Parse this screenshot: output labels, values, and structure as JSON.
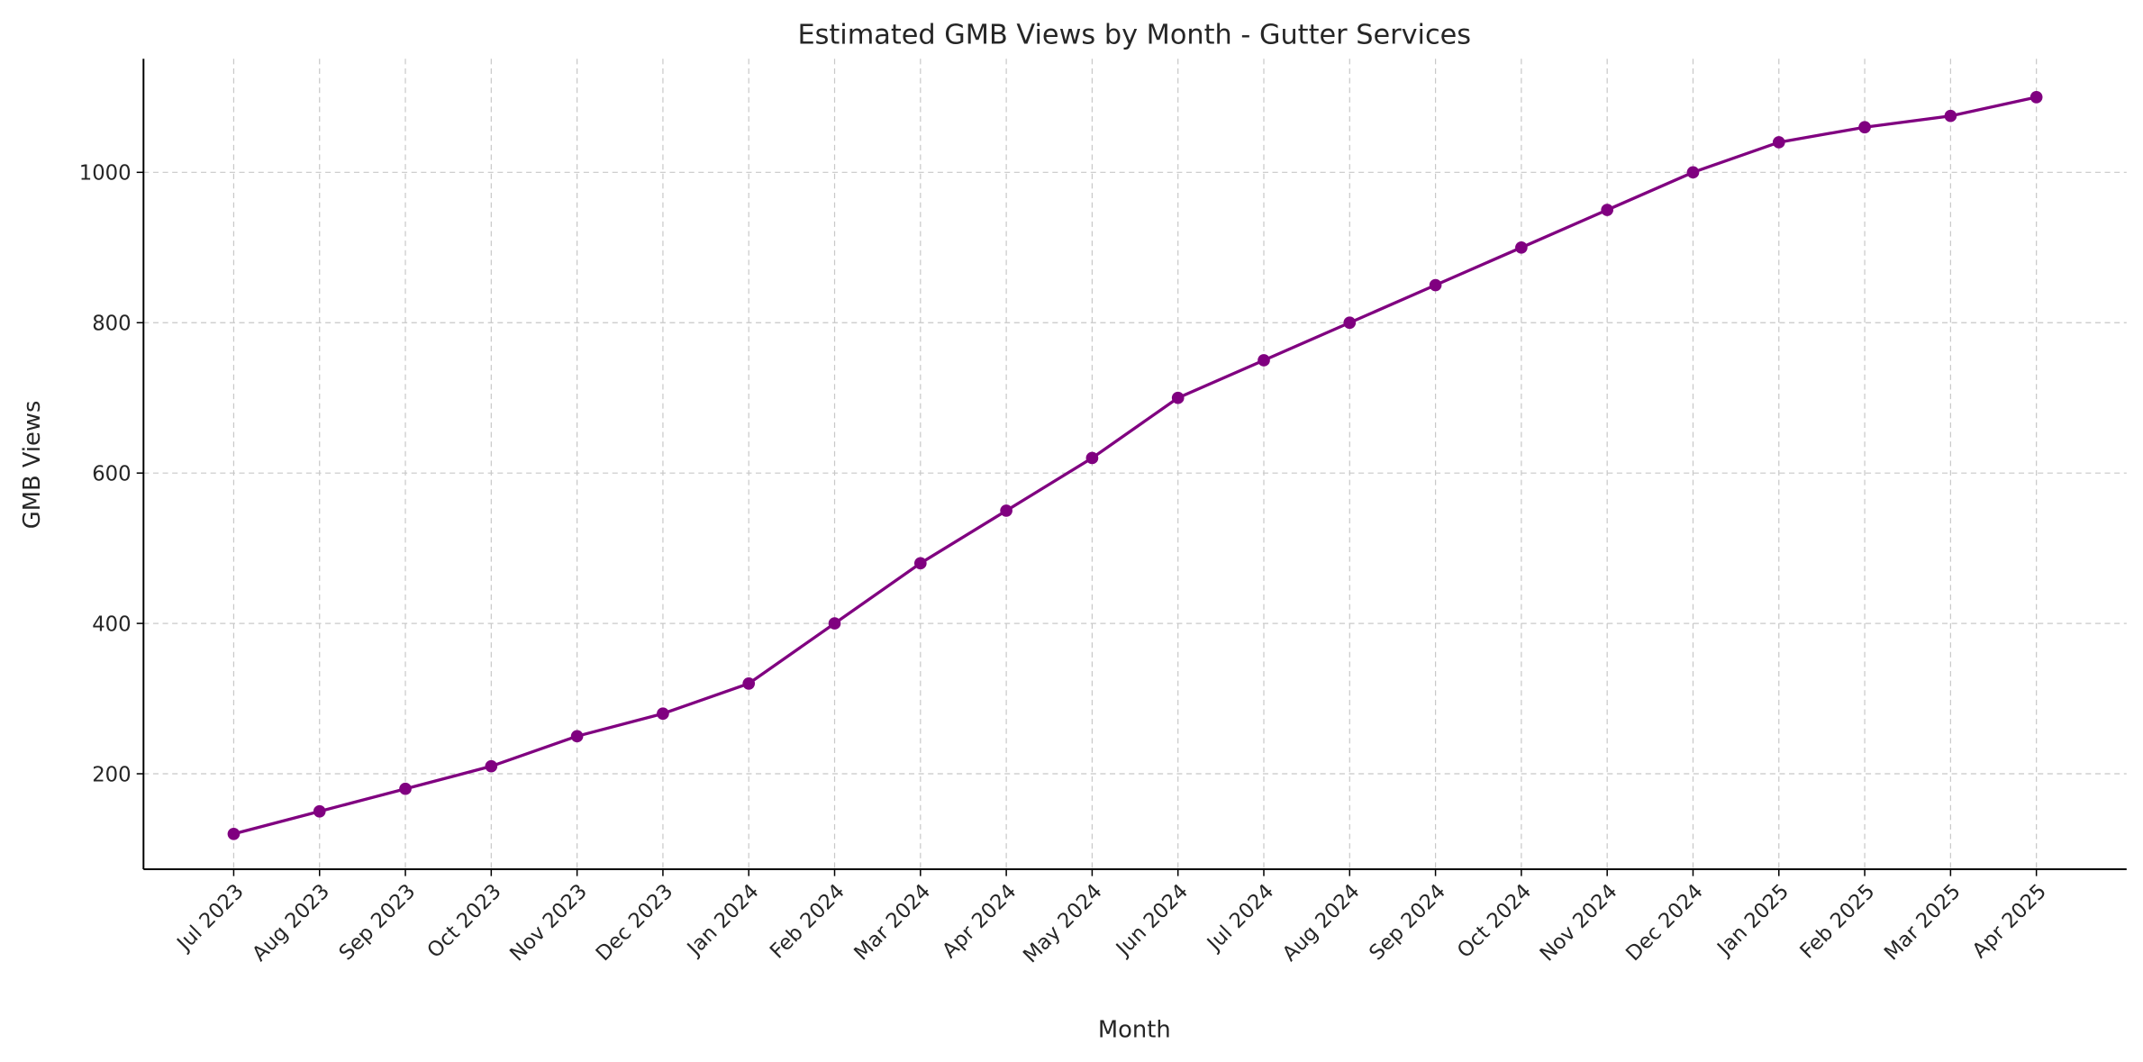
{
  "chart_data": {
    "type": "line",
    "title": "Estimated GMB Views by Month - Gutter Services",
    "xlabel": "Month",
    "ylabel": "GMB Views",
    "categories": [
      "Jul 2023",
      "Aug 2023",
      "Sep 2023",
      "Oct 2023",
      "Nov 2023",
      "Dec 2023",
      "Jan 2024",
      "Feb 2024",
      "Mar 2024",
      "Apr 2024",
      "May 2024",
      "Jun 2024",
      "Jul 2024",
      "Aug 2024",
      "Sep 2024",
      "Oct 2024",
      "Nov 2024",
      "Dec 2024",
      "Jan 2025",
      "Feb 2025",
      "Mar 2025",
      "Apr 2025"
    ],
    "series": [
      {
        "name": "GMB Views",
        "color": "#800080",
        "values": [
          120,
          150,
          180,
          210,
          250,
          280,
          320,
          400,
          480,
          550,
          620,
          700,
          750,
          800,
          850,
          900,
          950,
          1000,
          1040,
          1060,
          1075,
          1100
        ]
      }
    ],
    "yticks": [
      200,
      400,
      600,
      800,
      1000
    ],
    "ylim": [
      73,
      1151
    ],
    "grid": true,
    "legend": "none"
  }
}
